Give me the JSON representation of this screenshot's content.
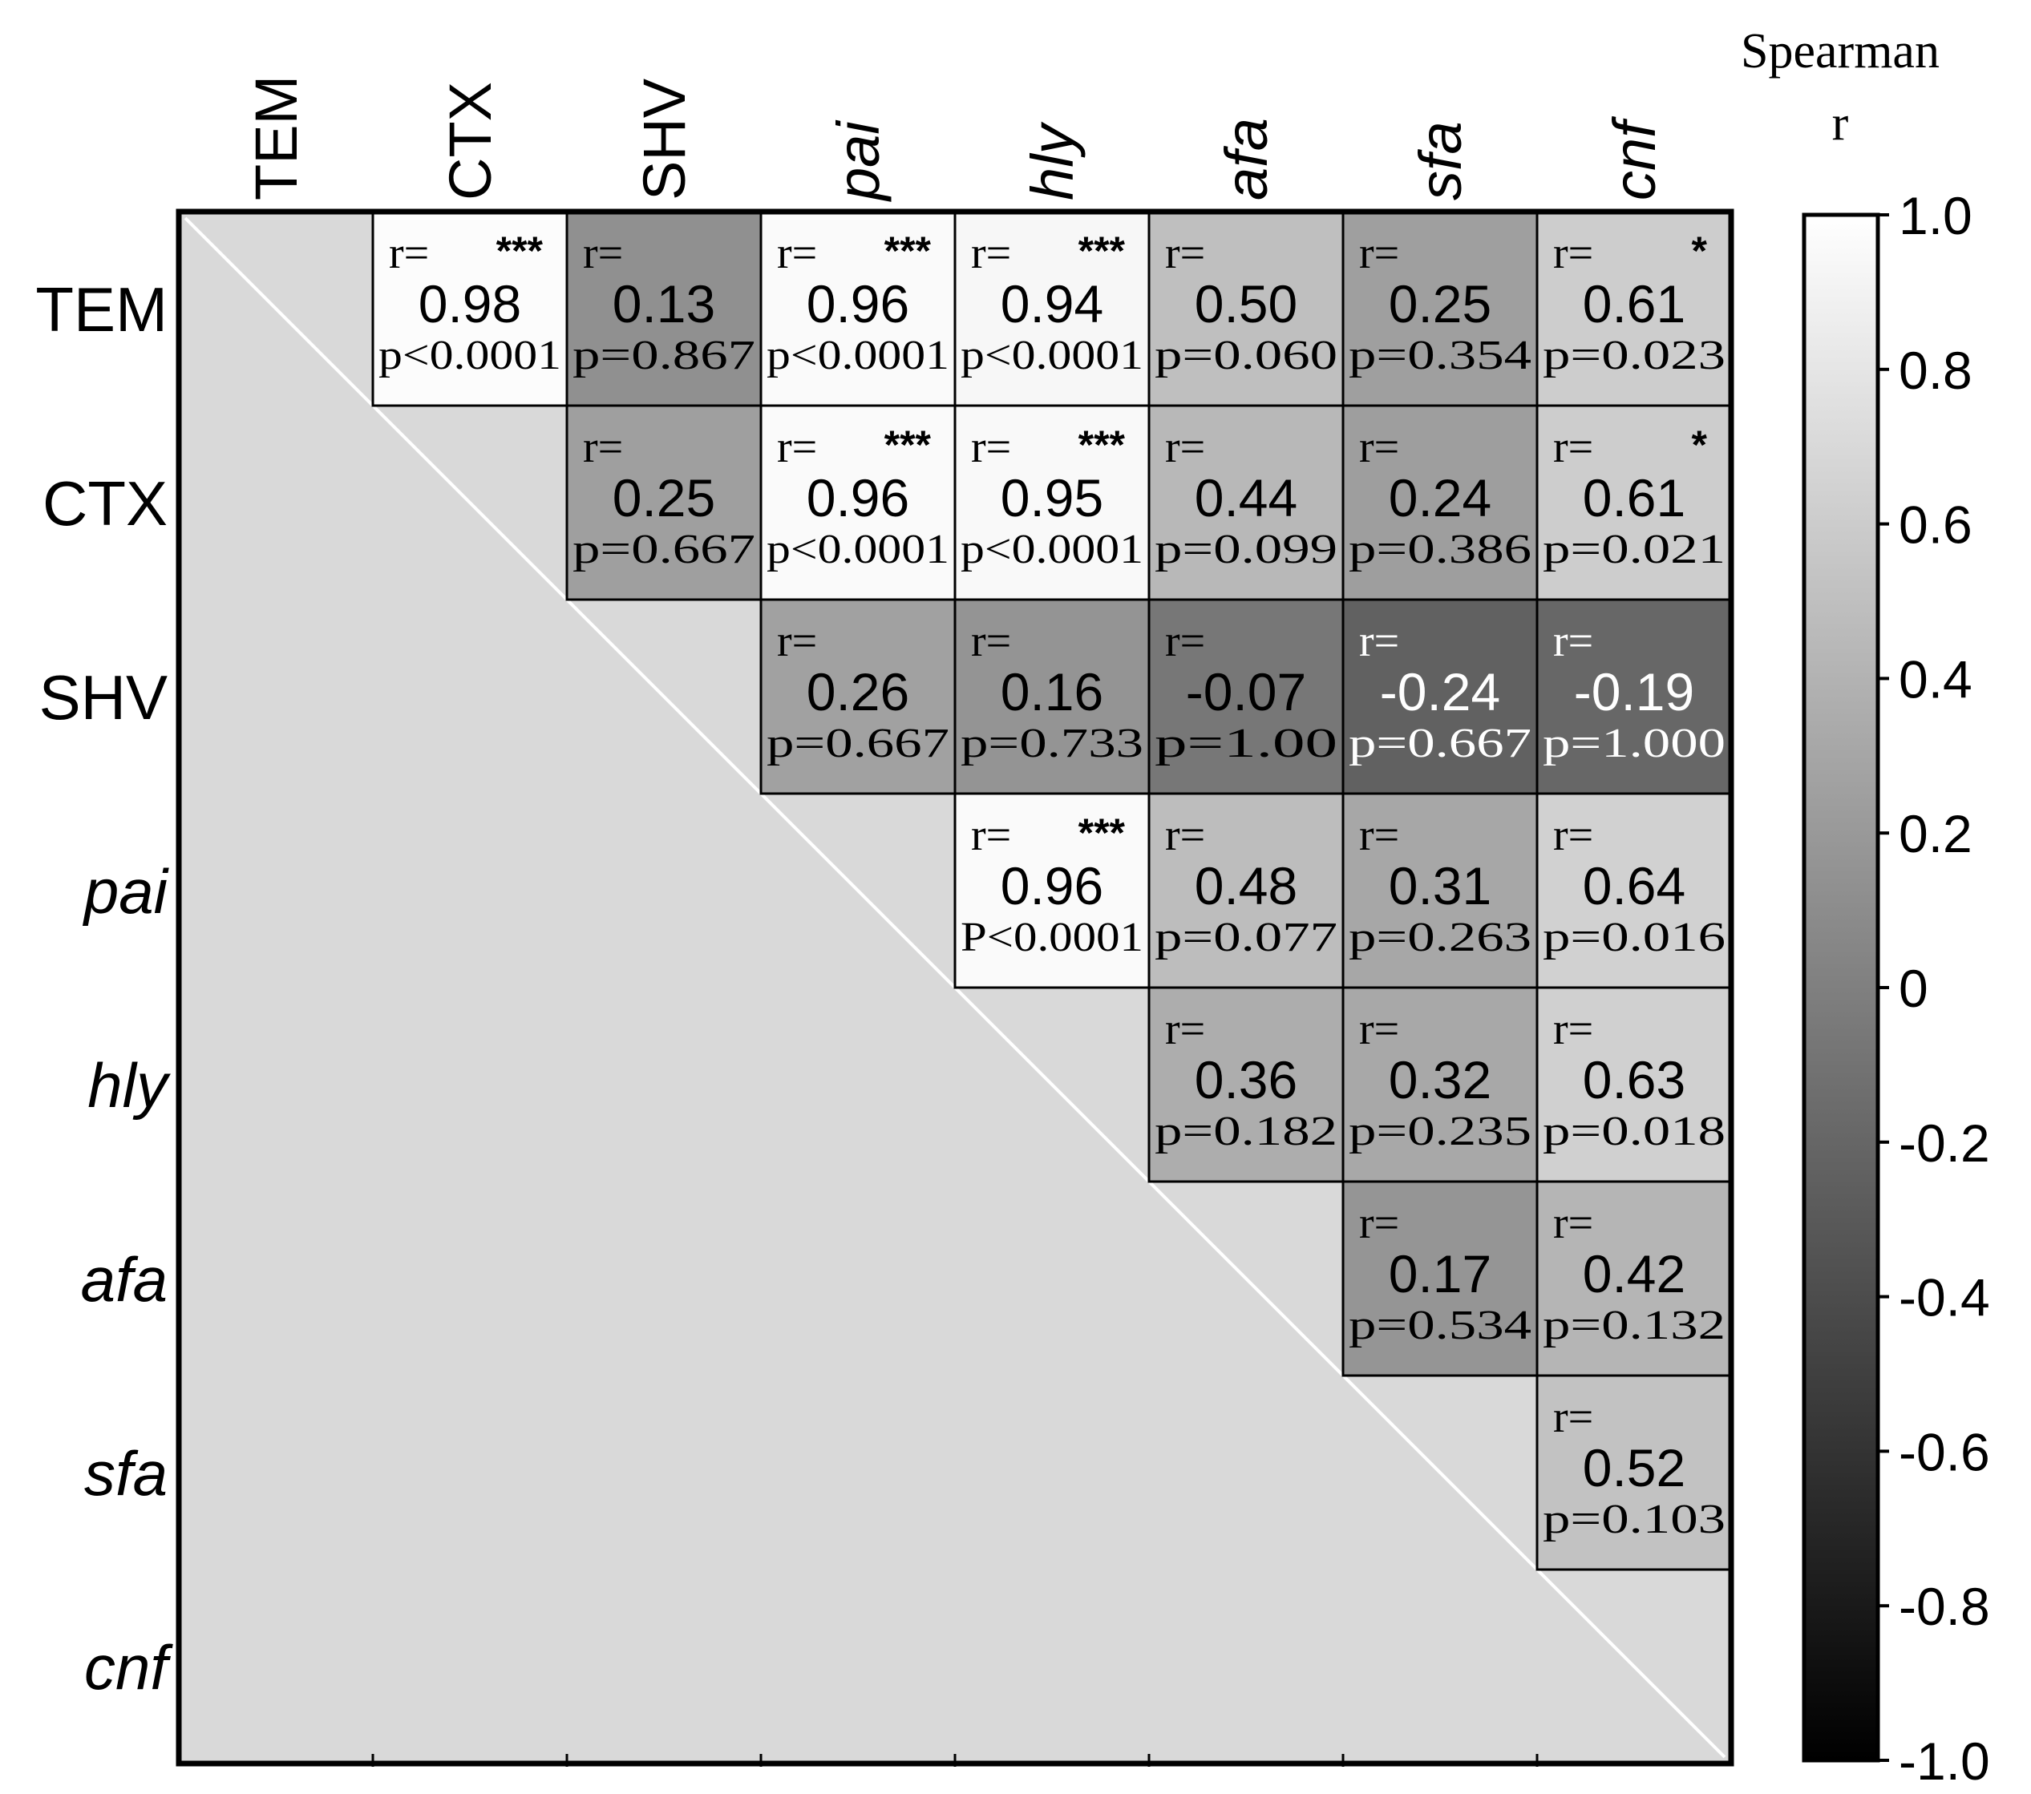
{
  "chart_data": {
    "type": "heatmap",
    "title": "",
    "legend_title": "Spearman r",
    "legend_title_lines": [
      "Spearman",
      "r"
    ],
    "variables": [
      {
        "label": "TEM",
        "italic": false
      },
      {
        "label": "CTX",
        "italic": false
      },
      {
        "label": "SHV",
        "italic": false
      },
      {
        "label": "pai",
        "italic": true
      },
      {
        "label": "hly",
        "italic": true
      },
      {
        "label": "afa",
        "italic": true
      },
      {
        "label": "sfa",
        "italic": true
      },
      {
        "label": "cnf",
        "italic": true
      }
    ],
    "colorbar": {
      "range": [
        -1.0,
        1.0
      ],
      "ticks": [
        1.0,
        0.8,
        0.6,
        0.4,
        0.2,
        0,
        -0.2,
        -0.4,
        -0.6,
        -0.8,
        -1.0
      ],
      "tick_labels": [
        "1.0",
        "0.8",
        "0.6",
        "0.4",
        "0.2",
        "0",
        "-0.2",
        "-0.4",
        "-0.6",
        "-0.8",
        "-1.0"
      ],
      "low_color": "#000000",
      "high_color": "#ffffff"
    },
    "diagonal_fill": "#d9d9d9",
    "cells": [
      {
        "row": 0,
        "col": 1,
        "r_prefix": "r=",
        "stars": "***",
        "value": 0.98,
        "value_label": "0.98",
        "p": "p<0.0001"
      },
      {
        "row": 0,
        "col": 2,
        "r_prefix": "r=",
        "stars": "",
        "value": 0.13,
        "value_label": "0.13",
        "p": "p=0.867"
      },
      {
        "row": 0,
        "col": 3,
        "r_prefix": "r=",
        "stars": "***",
        "value": 0.96,
        "value_label": "0.96",
        "p": "p<0.0001"
      },
      {
        "row": 0,
        "col": 4,
        "r_prefix": "r=",
        "stars": "***",
        "value": 0.94,
        "value_label": "0.94",
        "p": "p<0.0001"
      },
      {
        "row": 0,
        "col": 5,
        "r_prefix": "r=",
        "stars": "",
        "value": 0.5,
        "value_label": "0.50",
        "p": "p=0.060"
      },
      {
        "row": 0,
        "col": 6,
        "r_prefix": "r=",
        "stars": "",
        "value": 0.25,
        "value_label": "0.25",
        "p": "p=0.354"
      },
      {
        "row": 0,
        "col": 7,
        "r_prefix": "r=",
        "stars": "*",
        "value": 0.61,
        "value_label": "0.61",
        "p": "p=0.023"
      },
      {
        "row": 1,
        "col": 2,
        "r_prefix": "r=",
        "stars": "",
        "value": 0.25,
        "value_label": "0.25",
        "p": "p=0.667"
      },
      {
        "row": 1,
        "col": 3,
        "r_prefix": "r=",
        "stars": "***",
        "value": 0.96,
        "value_label": "0.96",
        "p": "p<0.0001"
      },
      {
        "row": 1,
        "col": 4,
        "r_prefix": "r=",
        "stars": "***",
        "value": 0.95,
        "value_label": "0.95",
        "p": "p<0.0001"
      },
      {
        "row": 1,
        "col": 5,
        "r_prefix": "r=",
        "stars": "",
        "value": 0.44,
        "value_label": "0.44",
        "p": "p=0.099"
      },
      {
        "row": 1,
        "col": 6,
        "r_prefix": "r=",
        "stars": "",
        "value": 0.24,
        "value_label": "0.24",
        "p": "p=0.386"
      },
      {
        "row": 1,
        "col": 7,
        "r_prefix": "r=",
        "stars": "*",
        "value": 0.61,
        "value_label": "0.61",
        "p": "p=0.021"
      },
      {
        "row": 2,
        "col": 3,
        "r_prefix": "r=",
        "stars": "",
        "value": 0.26,
        "value_label": "0.26",
        "p": "p=0.667"
      },
      {
        "row": 2,
        "col": 4,
        "r_prefix": "r=",
        "stars": "",
        "value": 0.16,
        "value_label": "0.16",
        "p": "p=0.733"
      },
      {
        "row": 2,
        "col": 5,
        "r_prefix": "r=",
        "stars": "",
        "value": -0.07,
        "value_label": "-0.07",
        "p": "p=1.00"
      },
      {
        "row": 2,
        "col": 6,
        "r_prefix": "r=",
        "stars": "",
        "value": -0.24,
        "value_label": "-0.24",
        "p": "p=0.667"
      },
      {
        "row": 2,
        "col": 7,
        "r_prefix": "r=",
        "stars": "",
        "value": -0.19,
        "value_label": "-0.19",
        "p": "p=1.000"
      },
      {
        "row": 3,
        "col": 4,
        "r_prefix": "r=",
        "stars": "***",
        "value": 0.96,
        "value_label": "0.96",
        "p": "P<0.0001"
      },
      {
        "row": 3,
        "col": 5,
        "r_prefix": "r=",
        "stars": "",
        "value": 0.48,
        "value_label": "0.48",
        "p": "p=0.077"
      },
      {
        "row": 3,
        "col": 6,
        "r_prefix": "r=",
        "stars": "",
        "value": 0.31,
        "value_label": "0.31",
        "p": "p=0.263"
      },
      {
        "row": 3,
        "col": 7,
        "r_prefix": "r=",
        "stars": "",
        "value": 0.64,
        "value_label": "0.64",
        "p": "p=0.016"
      },
      {
        "row": 4,
        "col": 5,
        "r_prefix": "r=",
        "stars": "",
        "value": 0.36,
        "value_label": "0.36",
        "p": "p=0.182"
      },
      {
        "row": 4,
        "col": 6,
        "r_prefix": "r=",
        "stars": "",
        "value": 0.32,
        "value_label": "0.32",
        "p": "p=0.235"
      },
      {
        "row": 4,
        "col": 7,
        "r_prefix": "r=",
        "stars": "",
        "value": 0.63,
        "value_label": "0.63",
        "p": "p=0.018"
      },
      {
        "row": 5,
        "col": 6,
        "r_prefix": "r=",
        "stars": "",
        "value": 0.17,
        "value_label": "0.17",
        "p": "p=0.534"
      },
      {
        "row": 5,
        "col": 7,
        "r_prefix": "r=",
        "stars": "",
        "value": 0.42,
        "value_label": "0.42",
        "p": "p=0.132"
      },
      {
        "row": 6,
        "col": 7,
        "r_prefix": "r=",
        "stars": "",
        "value": 0.52,
        "value_label": "0.52",
        "p": "p=0.103"
      }
    ]
  }
}
